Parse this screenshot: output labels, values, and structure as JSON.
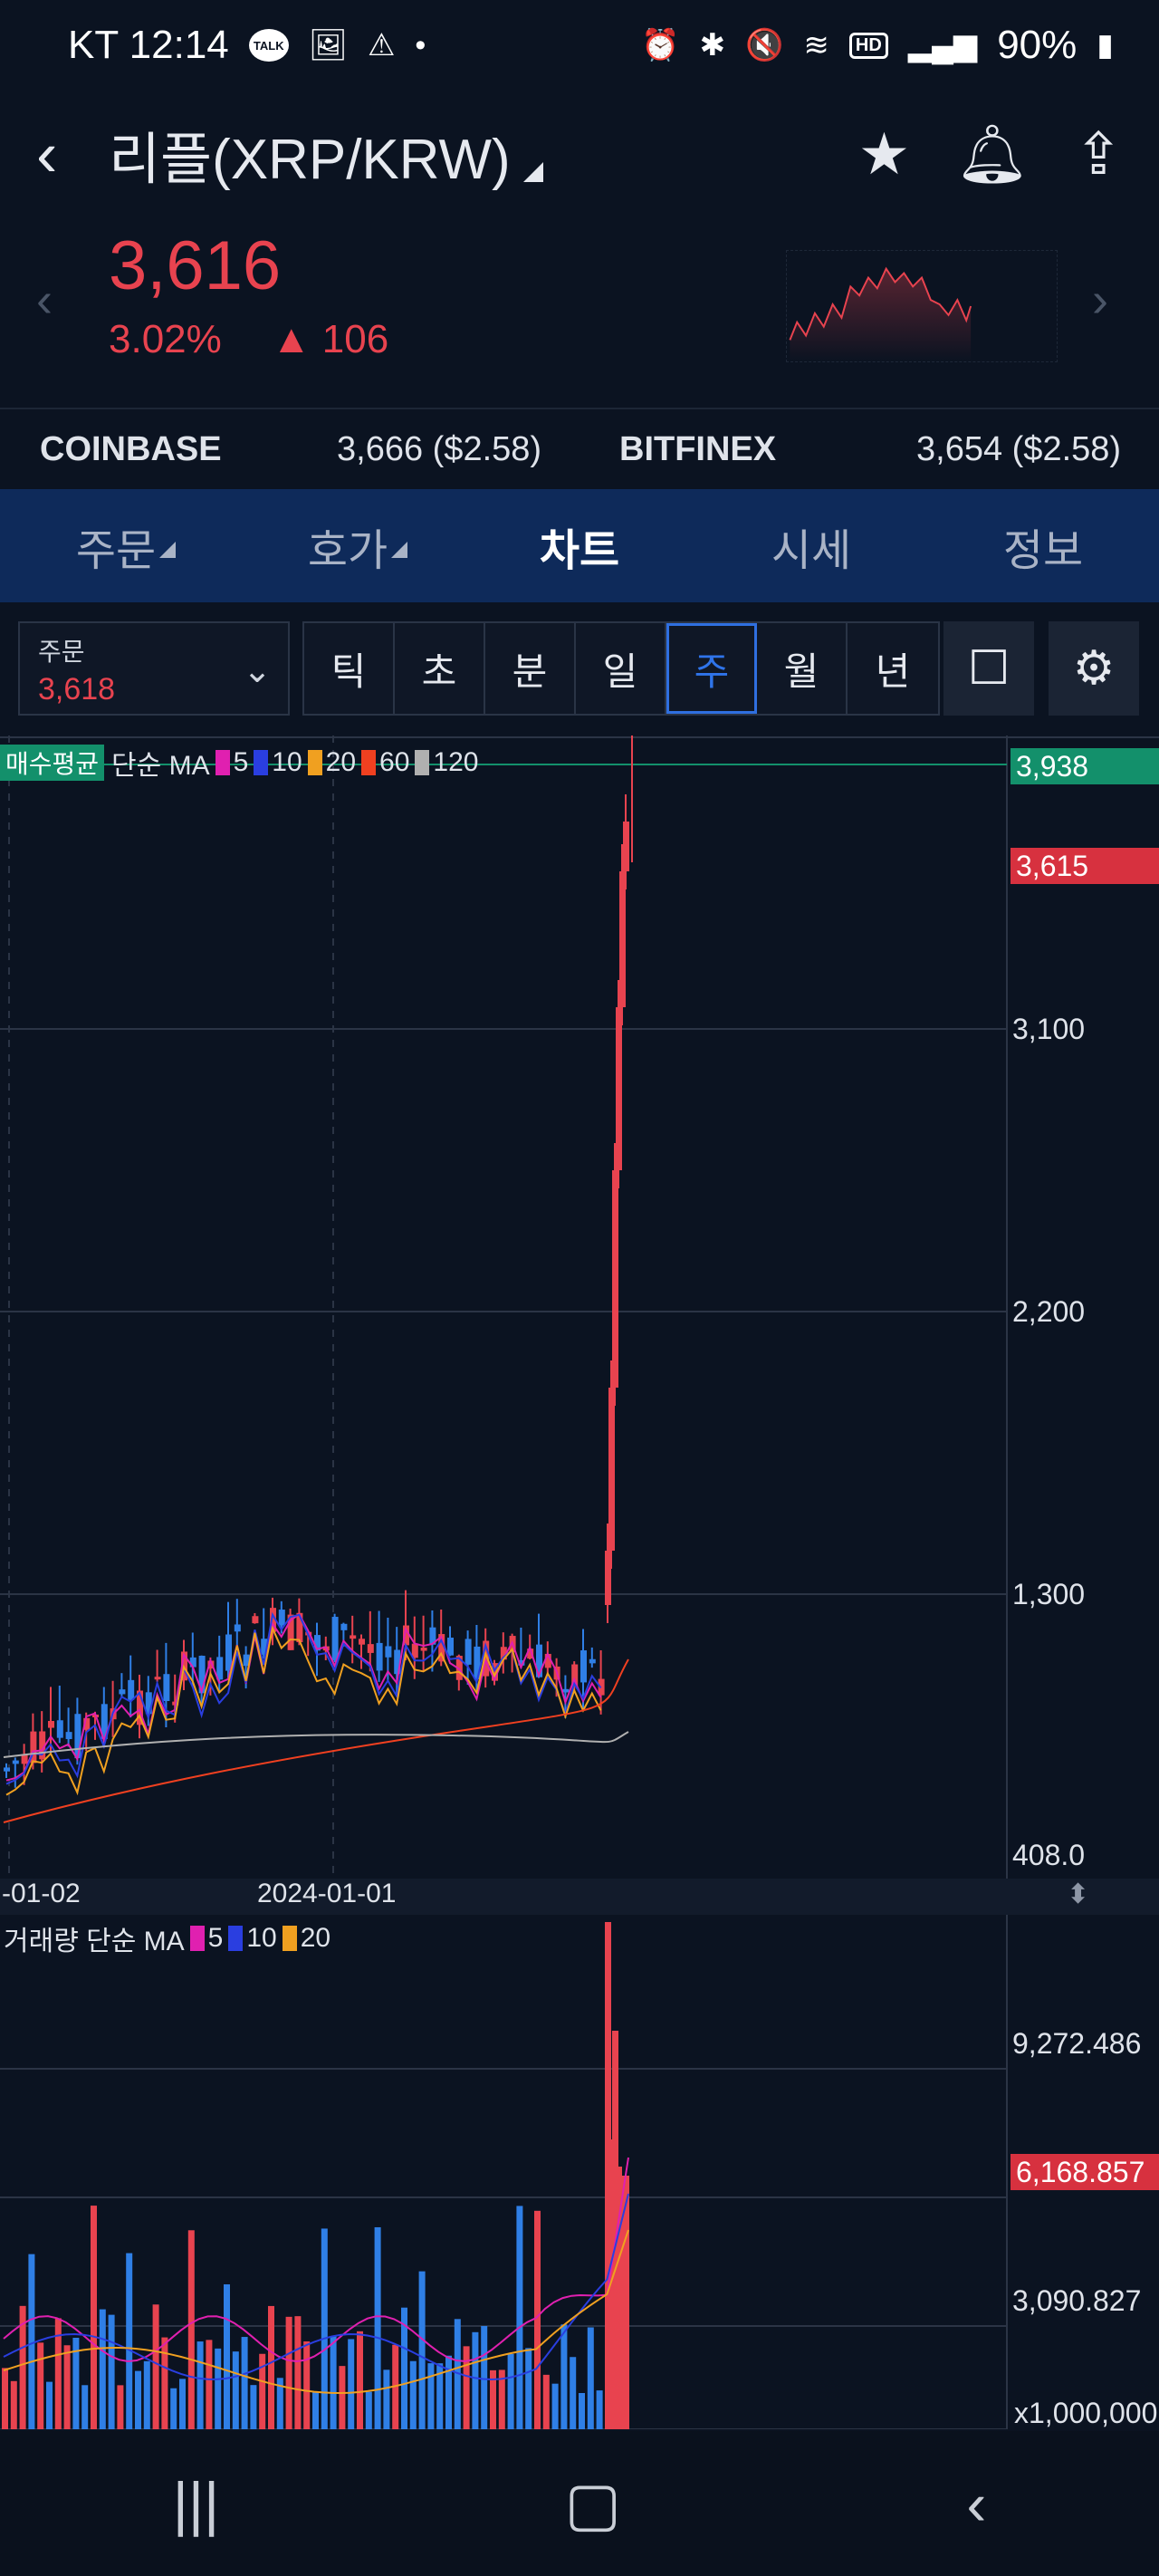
{
  "status_bar": {
    "time": "KT 12:14",
    "left_icons": [
      "talk-icon",
      "gallery-icon",
      "warning-icon",
      "dot-icon"
    ],
    "right_icons": [
      "alarm-icon",
      "bluetooth-icon",
      "mute-icon",
      "wifi-icon",
      "hd-icon",
      "signal-icon"
    ],
    "battery": "90%",
    "talk_text": "TALK",
    "hd_text": "HD"
  },
  "header": {
    "title": "리플(XRP/KRW)",
    "icons": [
      "star-icon",
      "bell-icon",
      "share-icon"
    ]
  },
  "price": {
    "current": "3,616",
    "change_pct": "3.02%",
    "change_abs": "106",
    "up_symbol": "▲"
  },
  "exchanges": [
    {
      "name": "COINBASE",
      "value": "3,666 ($2.58)"
    },
    {
      "name": "BITFINEX",
      "value": "3,654 ($2.58)"
    }
  ],
  "tabs": [
    {
      "label": "주문",
      "has_menu": true
    },
    {
      "label": "호가",
      "has_menu": true
    },
    {
      "label": "차트",
      "active": true
    },
    {
      "label": "시세"
    },
    {
      "label": "정보"
    }
  ],
  "toolbar": {
    "order_label": "주문",
    "order_value": "3,618",
    "periods": [
      "틱",
      "초",
      "분",
      "일",
      "주",
      "월",
      "년"
    ],
    "active_period": "주"
  },
  "chart": {
    "buy_tag": "매수평균",
    "ma_label": "단순 MA",
    "ma_periods": [
      "5",
      "10",
      "20",
      "60",
      "120"
    ],
    "ma_colors": [
      "#e020b0",
      "#2a3ee0",
      "#f0a020",
      "#f04020",
      "#b0b0b0"
    ],
    "price_axis": [
      {
        "label": "3,938",
        "kind": "tag",
        "color": "#13906b"
      },
      {
        "label": "3,615",
        "kind": "tag",
        "color": "#d7313f"
      },
      {
        "label": "3,100",
        "kind": "text"
      },
      {
        "label": "2,200",
        "kind": "text"
      },
      {
        "label": "1,300",
        "kind": "text"
      },
      {
        "label": "408.0",
        "kind": "text"
      }
    ],
    "x_labels": [
      "-01-02",
      "2024-01-01"
    ],
    "volume_label": "거래량 단순 MA",
    "vol_ma_periods": [
      "5",
      "10",
      "20"
    ],
    "vol_ma_colors": [
      "#e020b0",
      "#2a3ee0",
      "#f0a020"
    ],
    "volume_axis": [
      {
        "label": "9,272.486",
        "kind": "text"
      },
      {
        "label": "6,168.857",
        "kind": "tag",
        "color": "#d7313f"
      },
      {
        "label": "3,090.827",
        "kind": "text"
      },
      {
        "label": "x1,000,000",
        "kind": "text"
      }
    ],
    "up_color": "#e8434f",
    "down_color": "#2f7fe6"
  },
  "navbar": {
    "icons": [
      "recent-apps-icon",
      "home-icon",
      "back-icon"
    ]
  }
}
